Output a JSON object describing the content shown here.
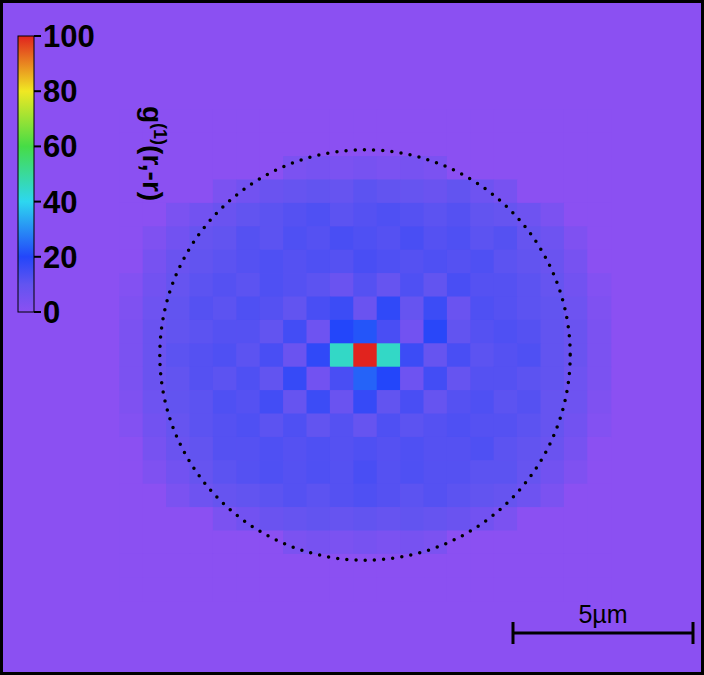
{
  "chart_data": {
    "type": "heatmap",
    "colorbar": {
      "label": {
        "base": "g",
        "sup": "(1)",
        "arg": "(r,-r)"
      },
      "range": [
        0,
        100
      ],
      "ticks": [
        0,
        20,
        40,
        60,
        80,
        100
      ]
    },
    "cell_size": 0.65,
    "cells": [
      [
        0,
        0,
        0,
        0,
        0,
        0,
        0,
        0,
        0,
        0,
        0,
        0,
        0,
        0,
        0,
        0,
        0,
        0,
        0,
        0,
        0
      ],
      [
        0,
        0,
        0,
        0,
        0,
        0,
        0,
        0,
        0,
        0,
        0,
        0,
        0,
        0,
        0,
        0,
        0,
        0,
        0,
        0,
        0
      ],
      [
        0,
        0,
        0,
        0,
        0,
        0,
        0,
        4,
        5,
        4,
        5,
        4,
        5,
        4,
        0,
        0,
        0,
        0,
        0,
        0,
        0
      ],
      [
        0,
        0,
        0,
        0,
        4,
        6,
        8,
        9,
        10,
        9,
        11,
        10,
        9,
        8,
        10,
        7,
        5,
        0,
        0,
        0,
        0
      ],
      [
        0,
        0,
        4,
        6,
        8,
        10,
        11,
        12,
        13,
        11,
        12,
        13,
        12,
        11,
        12,
        10,
        9,
        7,
        4,
        0,
        0
      ],
      [
        0,
        3,
        6,
        9,
        10,
        12,
        11,
        13,
        12,
        14,
        13,
        12,
        14,
        12,
        13,
        11,
        12,
        9,
        7,
        3,
        0
      ],
      [
        0,
        5,
        8,
        10,
        11,
        12,
        13,
        12,
        13,
        12,
        14,
        13,
        12,
        13,
        12,
        13,
        11,
        10,
        8,
        5,
        0
      ],
      [
        2,
        6,
        9,
        11,
        12,
        11,
        13,
        12,
        11,
        8,
        12,
        9,
        13,
        10,
        14,
        12,
        12,
        11,
        9,
        6,
        2
      ],
      [
        3,
        7,
        10,
        12,
        11,
        13,
        12,
        10,
        14,
        16,
        8,
        18,
        9,
        16,
        8,
        13,
        12,
        11,
        10,
        7,
        3
      ],
      [
        4,
        8,
        10,
        11,
        12,
        12,
        10,
        15,
        7,
        20,
        22,
        14,
        6,
        19,
        10,
        12,
        13,
        12,
        10,
        8,
        4
      ],
      [
        4,
        8,
        11,
        12,
        13,
        11,
        14,
        8,
        18,
        45,
        100,
        45,
        16,
        9,
        14,
        11,
        12,
        13,
        10,
        8,
        4
      ],
      [
        4,
        8,
        10,
        12,
        11,
        13,
        10,
        17,
        6,
        14,
        24,
        20,
        7,
        15,
        9,
        12,
        12,
        11,
        10,
        7,
        4
      ],
      [
        3,
        7,
        10,
        11,
        13,
        12,
        15,
        9,
        16,
        8,
        17,
        10,
        14,
        9,
        12,
        13,
        11,
        12,
        9,
        7,
        3
      ],
      [
        2,
        6,
        9,
        11,
        12,
        13,
        11,
        13,
        10,
        12,
        9,
        13,
        11,
        12,
        13,
        12,
        12,
        11,
        9,
        6,
        2
      ],
      [
        0,
        5,
        8,
        10,
        12,
        12,
        13,
        12,
        13,
        12,
        13,
        12,
        13,
        12,
        12,
        13,
        11,
        10,
        8,
        5,
        0
      ],
      [
        0,
        3,
        6,
        9,
        11,
        12,
        13,
        12,
        13,
        12,
        14,
        12,
        13,
        12,
        12,
        11,
        11,
        9,
        6,
        3,
        0
      ],
      [
        0,
        0,
        4,
        7,
        9,
        10,
        11,
        12,
        11,
        12,
        13,
        12,
        11,
        12,
        11,
        10,
        9,
        7,
        4,
        0,
        0
      ],
      [
        0,
        0,
        0,
        0,
        4,
        6,
        8,
        9,
        10,
        9,
        10,
        9,
        10,
        9,
        8,
        6,
        4,
        0,
        0,
        0,
        0
      ],
      [
        0,
        0,
        0,
        0,
        0,
        0,
        0,
        4,
        5,
        4,
        5,
        4,
        5,
        4,
        0,
        0,
        0,
        0,
        0,
        0,
        0
      ],
      [
        0,
        0,
        0,
        0,
        0,
        0,
        0,
        0,
        0,
        0,
        0,
        0,
        0,
        0,
        0,
        0,
        0,
        0,
        0,
        0,
        0
      ],
      [
        0,
        0,
        0,
        0,
        0,
        0,
        0,
        0,
        0,
        0,
        0,
        0,
        0,
        0,
        0,
        0,
        0,
        0,
        0,
        0,
        0
      ]
    ],
    "circle_radius": 5.7,
    "scale_bar": {
      "length": 5,
      "label": "5µm"
    }
  }
}
